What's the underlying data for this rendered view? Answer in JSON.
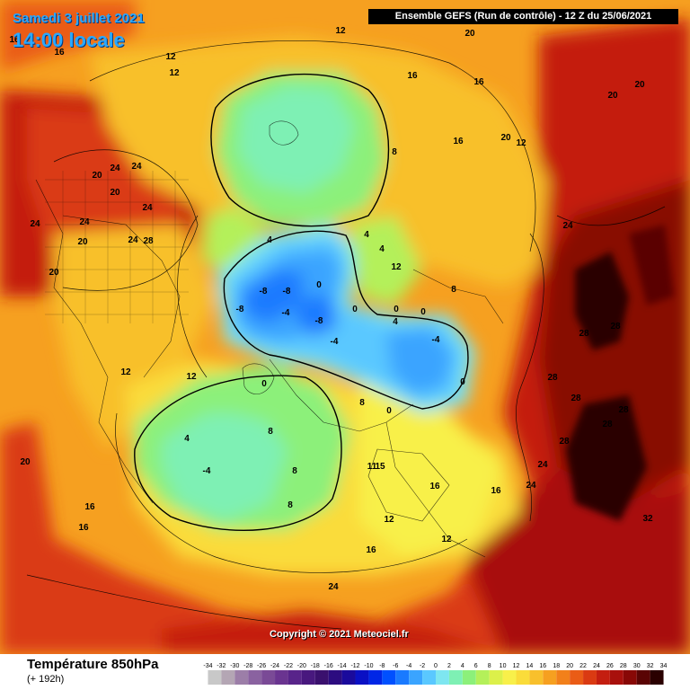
{
  "header": {
    "date": "Samedi 3 juillet 2021",
    "local_time": "14:00 locale",
    "model_info": "Ensemble GEFS  (Run de contrôle)  -  12 Z du 25/06/2021"
  },
  "map": {
    "copyright": "Copyright © 2021 Meteociel.fr",
    "isotherm_labels": [
      "-8",
      "-8",
      "-8",
      "-8",
      "-4",
      "-4",
      "-4",
      "-4",
      "0",
      "0",
      "0",
      "0",
      "0",
      "0",
      "0",
      "4",
      "4",
      "4",
      "4",
      "4",
      "8",
      "8",
      "8",
      "8",
      "8",
      "8",
      "12",
      "12",
      "12",
      "12",
      "12",
      "12",
      "12",
      "12",
      "12",
      "16",
      "16",
      "16",
      "16",
      "16",
      "16",
      "16",
      "16",
      "16",
      "16",
      "20",
      "20",
      "20",
      "20",
      "20",
      "20",
      "20",
      "20",
      "20",
      "24",
      "24",
      "24",
      "24",
      "24",
      "24",
      "24",
      "24",
      "24",
      "24",
      "28",
      "28",
      "28",
      "28",
      "28",
      "28",
      "28",
      "28",
      "32",
      "11",
      "15"
    ]
  },
  "footer": {
    "title": "Température 850hPa",
    "subtitle": "(+ 192h)"
  },
  "legend": {
    "ticks": [
      "-34",
      "-32",
      "-30",
      "-28",
      "-26",
      "-24",
      "-22",
      "-20",
      "-18",
      "-16",
      "-14",
      "-12",
      "-10",
      "-8",
      "-6",
      "-4",
      "-2",
      "0",
      "2",
      "4",
      "6",
      "8",
      "10",
      "12",
      "14",
      "16",
      "18",
      "20",
      "22",
      "24",
      "26",
      "28",
      "30",
      "32",
      "34"
    ],
    "colors": [
      "#c8c8c8",
      "#b4a6b4",
      "#9c7ea8",
      "#8a62a0",
      "#7a4a96",
      "#6a3490",
      "#58248a",
      "#48187e",
      "#3a106e",
      "#2c0c80",
      "#1a0a9c",
      "#0a10c4",
      "#0026e6",
      "#0050ff",
      "#1a7aff",
      "#3aa4ff",
      "#5ac8ff",
      "#7ee6f0",
      "#7ef0b4",
      "#8cf07a",
      "#b4f05a",
      "#dcf04a",
      "#f8f04a",
      "#fadc3a",
      "#f8c02c",
      "#f6a020",
      "#f2801a",
      "#ea5c16",
      "#da3a12",
      "#c41e10",
      "#a8100c",
      "#880806",
      "#5a0404",
      "#2a0000"
    ]
  }
}
